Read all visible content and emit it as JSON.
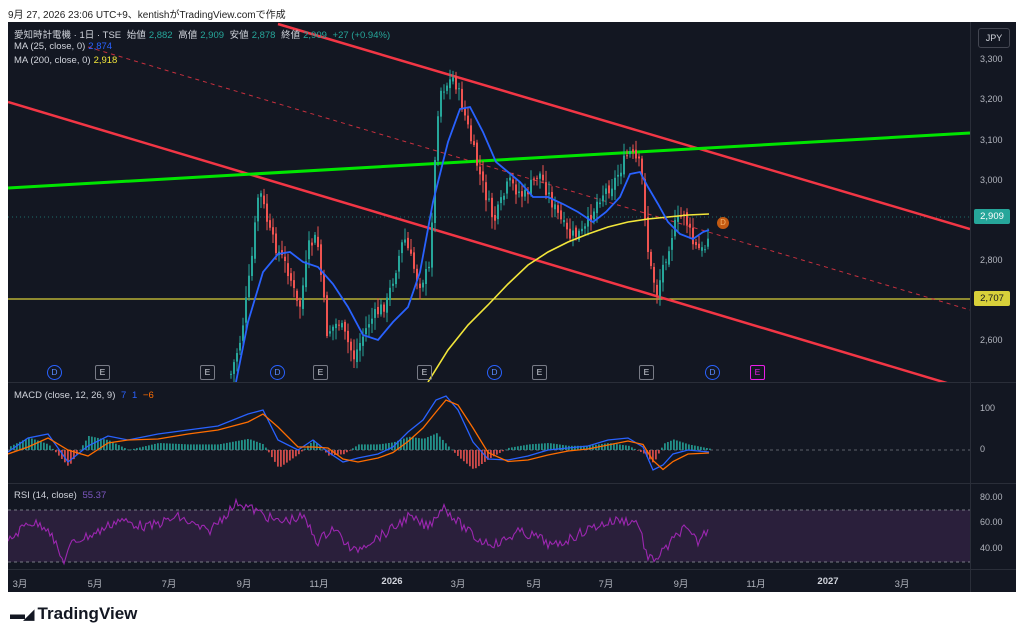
{
  "caption": "9月 27, 2026 23:06 UTC+9、kentishがTradingView.comで作成",
  "main_legend": {
    "symbol": "愛知時計電機 · 1日 · TSE",
    "open_label": "始値",
    "open": "2,882",
    "high_label": "高値",
    "high": "2,909",
    "low_label": "安値",
    "low": "2,878",
    "close_label": "終値",
    "close": "2,909",
    "change": "+27 (+0.94%)",
    "ma25_label": "MA (25, close, 0)",
    "ma25_value": "2,874",
    "ma200_label": "MA (200, close, 0)",
    "ma200_value": "2,918"
  },
  "currency": "JPY",
  "price_tags": {
    "last": "2,909",
    "line": "2,707"
  },
  "price_axis": [
    "3,300",
    "3,200",
    "3,100",
    "3,000",
    "2,800",
    "2,600"
  ],
  "macd": {
    "label": "MACD (close, 12, 26, 9)",
    "v1": "7",
    "v2": "1",
    "v3": "−6",
    "axis": [
      "100",
      "0"
    ]
  },
  "rsi": {
    "label": "RSI (14, close)",
    "value": "55.37",
    "axis": [
      "80.00",
      "60.00",
      "40.00"
    ]
  },
  "time_axis": [
    "3月",
    "5月",
    "7月",
    "9月",
    "11月",
    "2026",
    "3月",
    "5月",
    "7月",
    "9月",
    "11月",
    "2027",
    "3月"
  ],
  "events": [
    "D",
    "E",
    "E",
    "D",
    "E",
    "E",
    "D",
    "E",
    "E",
    "D",
    "E"
  ],
  "dividend_marker": "D",
  "footer": {
    "brand": "TradingView"
  },
  "colors": {
    "up": "#26a69a",
    "down": "#ef5350",
    "ma25": "#2962ff",
    "ma200": "#f2e63a",
    "channel": "#f23645",
    "trendline": "#00e600",
    "level": "#d8d03a",
    "rsi": "#9c27b0"
  }
}
